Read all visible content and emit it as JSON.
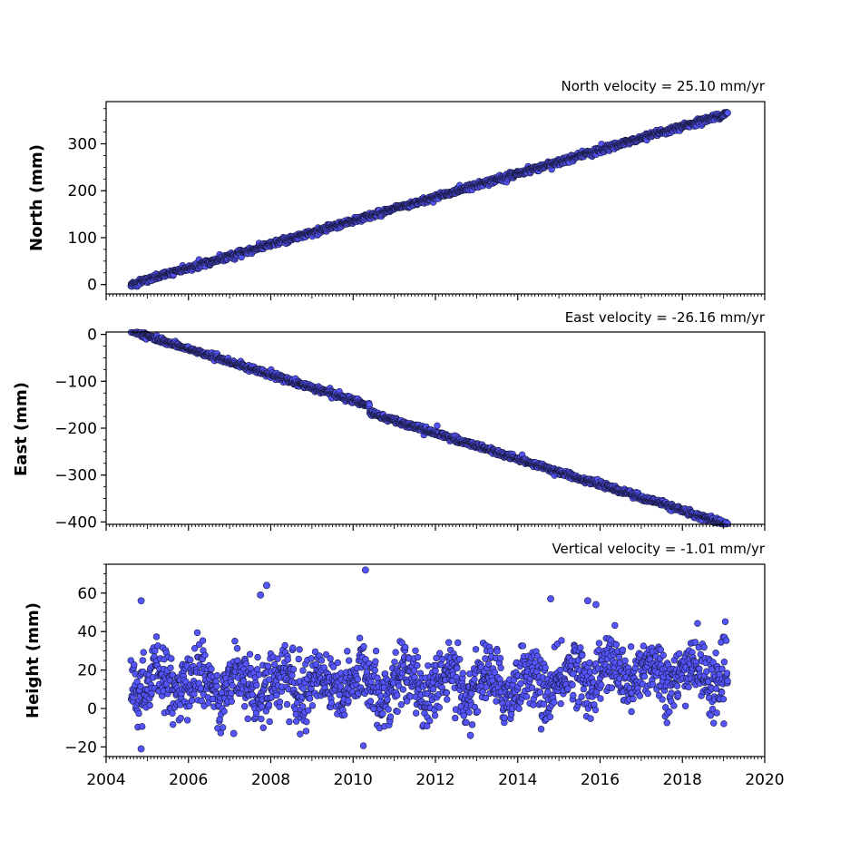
{
  "chart_data": [
    {
      "type": "scatter",
      "id": "north",
      "title": "North velocity = 25.10 mm/yr",
      "ylabel": "North (mm)",
      "xlim": [
        2004,
        2020
      ],
      "ylim": [
        -20,
        390
      ],
      "yticks": [
        0,
        100,
        200,
        300
      ],
      "x_start": 2004.6,
      "x_end": 2019.1,
      "trend": {
        "y_start": 0,
        "y_end": 365,
        "noise_mm": 3,
        "outlier_rate": 0.02
      },
      "grid": false,
      "marker_color": "#5555ff"
    },
    {
      "type": "scatter",
      "id": "east",
      "title": "East velocity = -26.16 mm/yr",
      "ylabel": "East (mm)",
      "xlim": [
        2004,
        2020
      ],
      "ylim": [
        -405,
        5
      ],
      "yticks": [
        0,
        -100,
        -200,
        -300,
        -400
      ],
      "x_start": 2004.6,
      "x_end": 2019.1,
      "trend": {
        "y_start": 0,
        "y_end": -398,
        "noise_mm": 3,
        "outlier_rate": 0.02,
        "offset_at": 2010.4,
        "offset_mm": -15
      },
      "grid": false,
      "marker_color": "#5555ff"
    },
    {
      "type": "scatter",
      "id": "height",
      "title": "Vertical velocity = -1.01 mm/yr",
      "ylabel": "Height (mm)",
      "xlabel": "",
      "xlim": [
        2004,
        2020
      ],
      "ylim": [
        -25,
        75
      ],
      "yticks": [
        -20,
        0,
        20,
        40,
        60
      ],
      "xticks": [
        2004,
        2006,
        2008,
        2010,
        2012,
        2014,
        2016,
        2018,
        2020
      ],
      "x_start": 2004.6,
      "x_end": 2019.1,
      "trend": {
        "y_mean": 13,
        "noise_mm": 8,
        "seasonal_amp": 6
      },
      "highlights": [
        {
          "x": 2010.3,
          "y": 72
        },
        {
          "x": 2007.9,
          "y": 64
        },
        {
          "x": 2007.75,
          "y": 59
        },
        {
          "x": 2004.85,
          "y": 56
        },
        {
          "x": 2014.8,
          "y": 57
        },
        {
          "x": 2004.85,
          "y": -21
        },
        {
          "x": 2012.85,
          "y": -14
        },
        {
          "x": 2007.1,
          "y": -13
        },
        {
          "x": 2015.7,
          "y": 56
        },
        {
          "x": 2015.9,
          "y": 54
        }
      ],
      "grid": false,
      "marker_color": "#5555ff"
    }
  ]
}
